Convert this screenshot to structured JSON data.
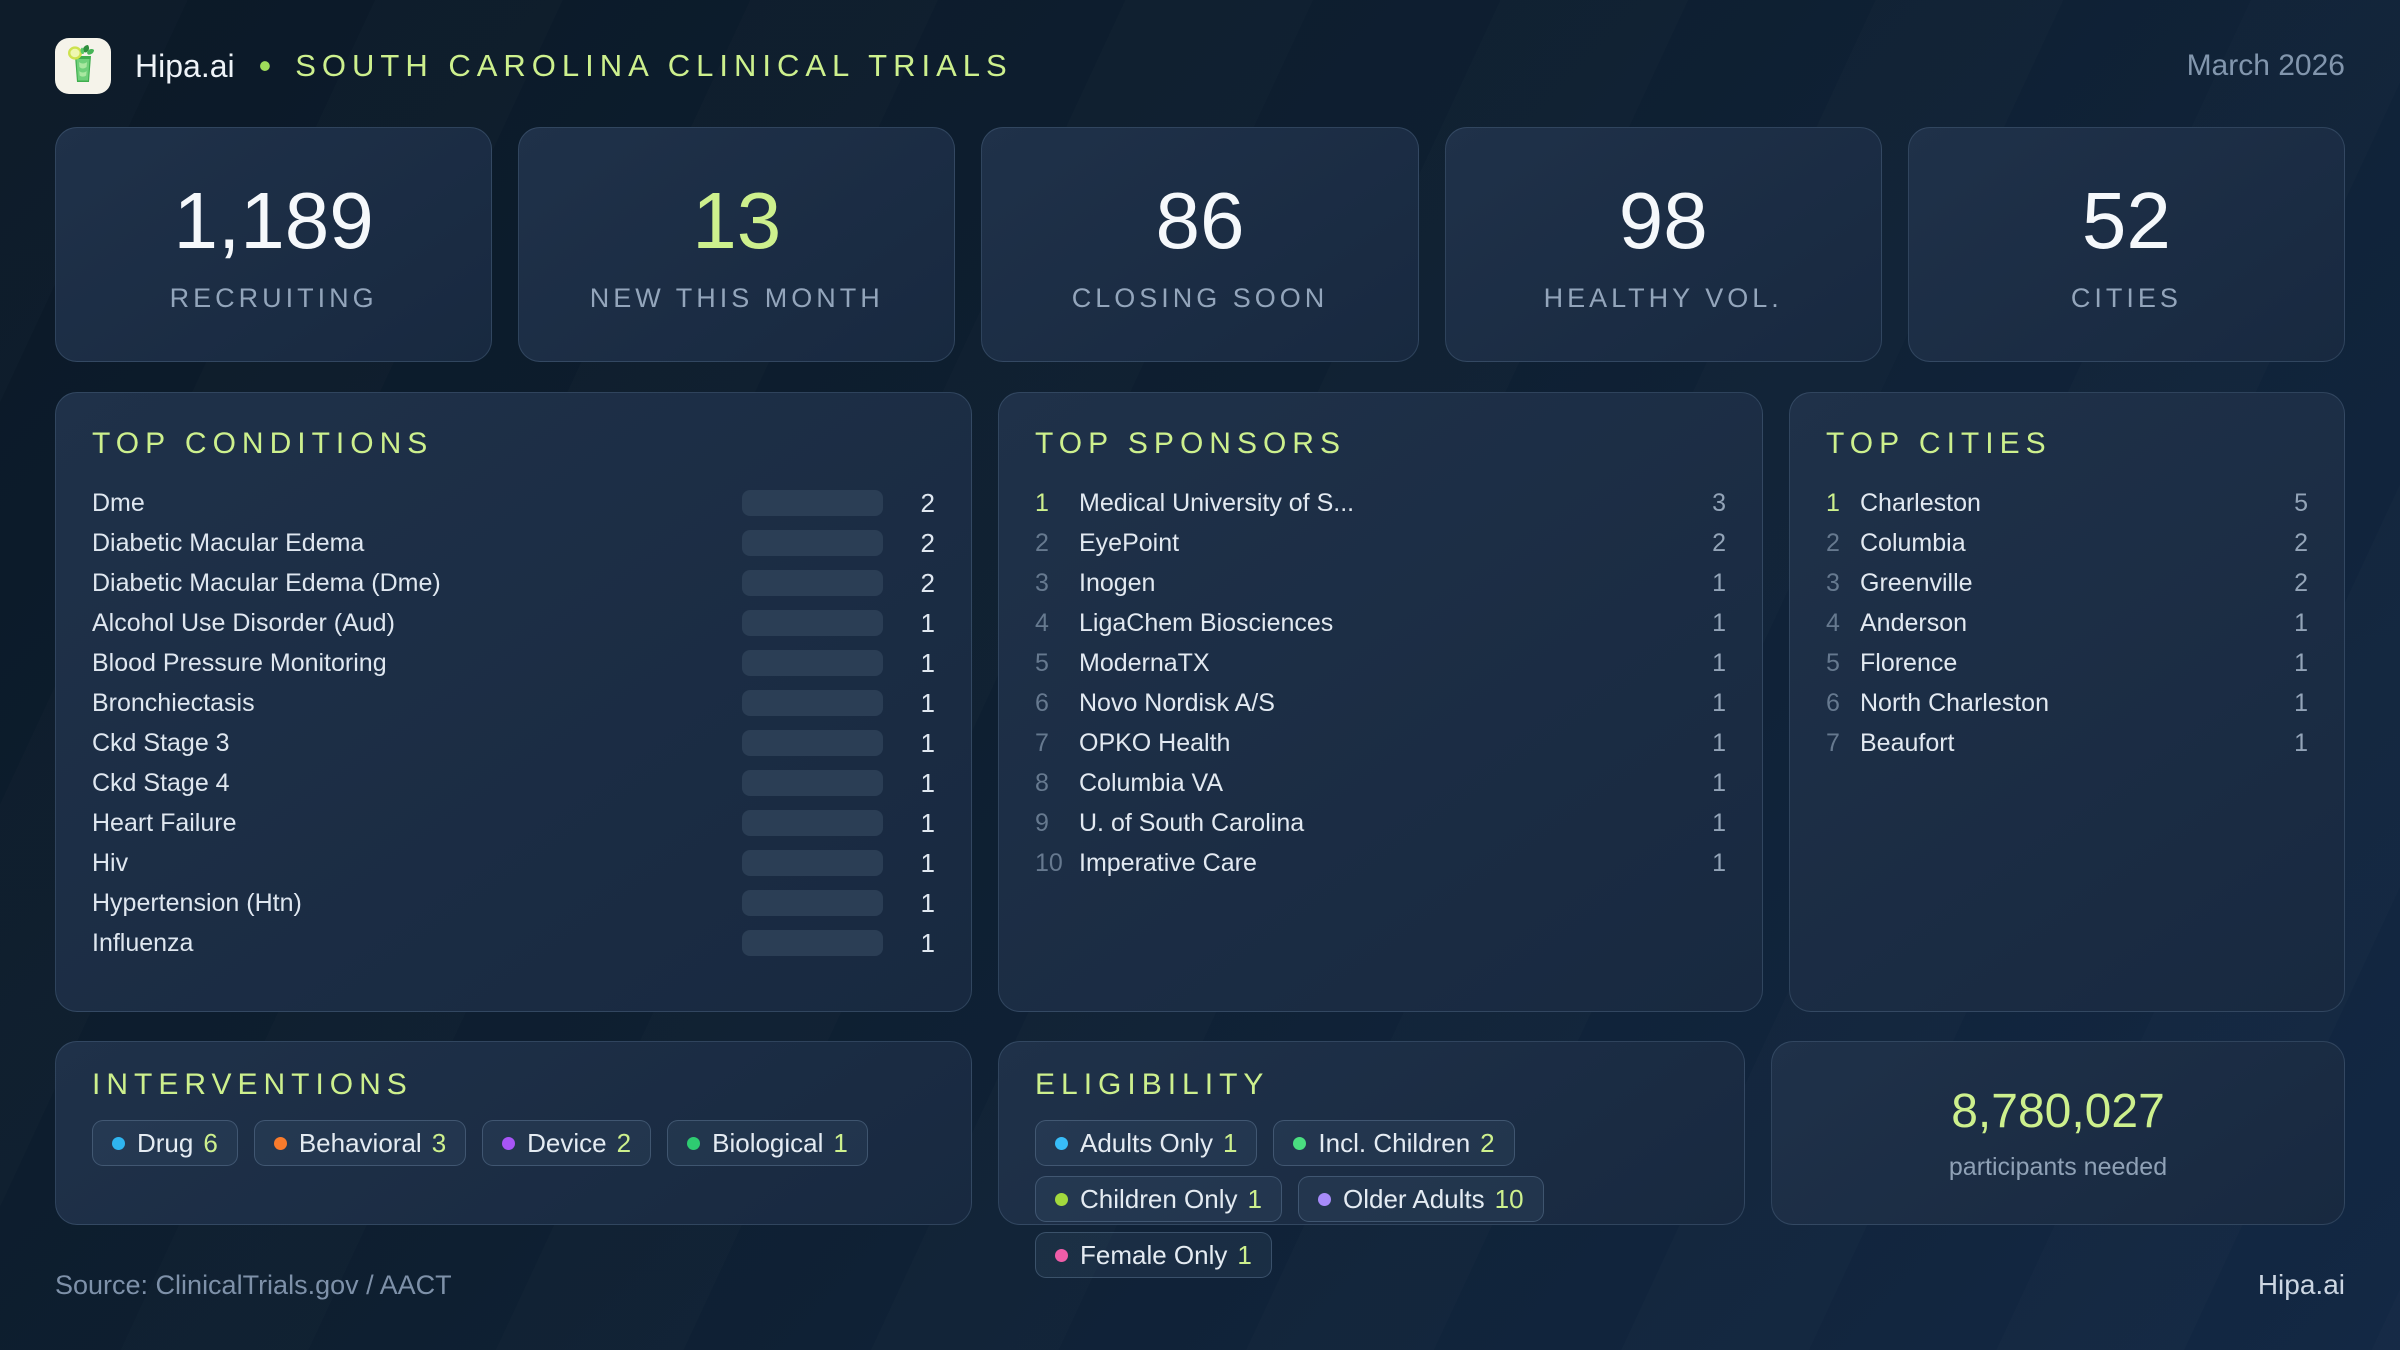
{
  "header": {
    "brand": "Hipa.ai",
    "separator": "•",
    "title": "SOUTH CAROLINA CLINICAL TRIALS",
    "date": "March 2026"
  },
  "stats": [
    {
      "value": "1,189",
      "label": "RECRUITING"
    },
    {
      "value": "13",
      "label": "NEW THIS MONTH",
      "accent": true
    },
    {
      "value": "86",
      "label": "CLOSING SOON"
    },
    {
      "value": "98",
      "label": "HEALTHY VOL."
    },
    {
      "value": "52",
      "label": "CITIES"
    }
  ],
  "conditions": {
    "title": "TOP CONDITIONS",
    "max": 2,
    "items": [
      {
        "label": "Dme",
        "value": 2
      },
      {
        "label": "Diabetic Macular Edema",
        "value": 2
      },
      {
        "label": "Diabetic Macular Edema (Dme)",
        "value": 2
      },
      {
        "label": "Alcohol Use Disorder (Aud)",
        "value": 1
      },
      {
        "label": "Blood Pressure Monitoring",
        "value": 1
      },
      {
        "label": "Bronchiectasis",
        "value": 1
      },
      {
        "label": "Ckd Stage 3",
        "value": 1
      },
      {
        "label": "Ckd Stage 4",
        "value": 1
      },
      {
        "label": "Heart Failure",
        "value": 1
      },
      {
        "label": "Hiv",
        "value": 1
      },
      {
        "label": "Hypertension (Htn)",
        "value": 1
      },
      {
        "label": "Influenza",
        "value": 1
      }
    ]
  },
  "sponsors": {
    "title": "TOP SPONSORS",
    "items": [
      {
        "rank": 1,
        "first": true,
        "name": "Medical University of S...",
        "value": 3
      },
      {
        "rank": 2,
        "name": "EyePoint",
        "value": 2
      },
      {
        "rank": 3,
        "name": "Inogen",
        "value": 1
      },
      {
        "rank": 4,
        "name": "LigaChem Biosciences",
        "value": 1
      },
      {
        "rank": 5,
        "name": "ModernaTX",
        "value": 1
      },
      {
        "rank": 6,
        "name": "Novo Nordisk A/S",
        "value": 1
      },
      {
        "rank": 7,
        "name": "OPKO Health",
        "value": 1
      },
      {
        "rank": 8,
        "name": "Columbia VA",
        "value": 1
      },
      {
        "rank": 9,
        "name": "U. of South Carolina",
        "value": 1
      },
      {
        "rank": 10,
        "name": "Imperative Care",
        "value": 1
      }
    ]
  },
  "cities": {
    "title": "TOP CITIES",
    "items": [
      {
        "rank": 1,
        "first": true,
        "name": "Charleston",
        "value": 5
      },
      {
        "rank": 2,
        "name": "Columbia",
        "value": 2
      },
      {
        "rank": 3,
        "name": "Greenville",
        "value": 2
      },
      {
        "rank": 4,
        "name": "Anderson",
        "value": 1
      },
      {
        "rank": 5,
        "name": "Florence",
        "value": 1
      },
      {
        "rank": 6,
        "name": "North Charleston",
        "value": 1
      },
      {
        "rank": 7,
        "name": "Beaufort",
        "value": 1
      }
    ]
  },
  "interventions": {
    "title": "INTERVENTIONS",
    "tags": [
      {
        "label": "Drug",
        "count": 6,
        "color": "#2fb5f0"
      },
      {
        "label": "Behavioral",
        "count": 3,
        "color": "#f97b2c"
      },
      {
        "label": "Device",
        "count": 2,
        "color": "#a855f7"
      },
      {
        "label": "Biological",
        "count": 1,
        "color": "#2ecc71"
      }
    ]
  },
  "eligibility": {
    "title": "ELIGIBILITY",
    "tags": [
      {
        "label": "Adults Only",
        "count": 1,
        "color": "#38bdf8"
      },
      {
        "label": "Incl. Children",
        "count": 2,
        "color": "#4ade80"
      },
      {
        "label": "Children Only",
        "count": 1,
        "color": "#a3d93d"
      },
      {
        "label": "Older Adults",
        "count": 10,
        "color": "#a78bfa"
      },
      {
        "label": "Female Only",
        "count": 1,
        "color": "#ef5da8"
      }
    ]
  },
  "participants": {
    "value": "8,780,027",
    "label": "participants needed"
  },
  "footer": {
    "source": "Source: ClinicalTrials.gov / AACT",
    "brand": "Hipa.ai"
  },
  "colors": {
    "accent_green": "#cdf08d",
    "bar_blue": "#18a9e8",
    "panel_bg": "#1b2c42",
    "page_bg": "#0e1f31"
  }
}
